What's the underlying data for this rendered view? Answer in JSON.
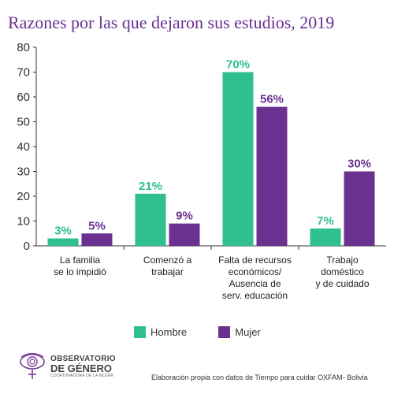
{
  "title": "Razones por las que dejaron sus estudios, 2019",
  "colors": {
    "hombre": "#2fbf90",
    "mujer": "#6a3190",
    "title": "#6a2f8f"
  },
  "chart_data": {
    "type": "bar",
    "title": "Razones por las que dejaron sus estudios, 2019",
    "xlabel": "",
    "ylabel": "",
    "ylim": [
      0,
      80
    ],
    "yticks": [
      "0",
      "10",
      "20",
      "30",
      "40",
      "50",
      "60",
      "70",
      "80"
    ],
    "grid": false,
    "legend_position": "bottom",
    "categories": [
      [
        "La familia",
        "se lo impidió"
      ],
      [
        "Comenzó a",
        "trabajar"
      ],
      [
        "Falta de recursos",
        "económicos/",
        "Ausencia de",
        "serv. educación"
      ],
      [
        "Trabajo",
        "doméstico",
        "y de cuidado"
      ]
    ],
    "series": [
      {
        "name": "Hombre",
        "values": [
          3,
          21,
          70,
          7
        ],
        "labels": [
          "3%",
          "21%",
          "70%",
          "7%"
        ]
      },
      {
        "name": "Mujer",
        "values": [
          5,
          9,
          56,
          30
        ],
        "labels": [
          "5%",
          "9%",
          "56%",
          "30%"
        ]
      }
    ]
  },
  "legend": {
    "hombre": "Hombre",
    "mujer": "Mujer"
  },
  "logo": {
    "line1": "OBSERVATORIO",
    "line2": "DE GÉNERO",
    "line3": "COORDINADORA DE LA MUJER",
    "icon": "eye-venus-logo-icon"
  },
  "source": "Elaboración propia con datos de Tiempo para cuidar OXFAM- Bolivia"
}
